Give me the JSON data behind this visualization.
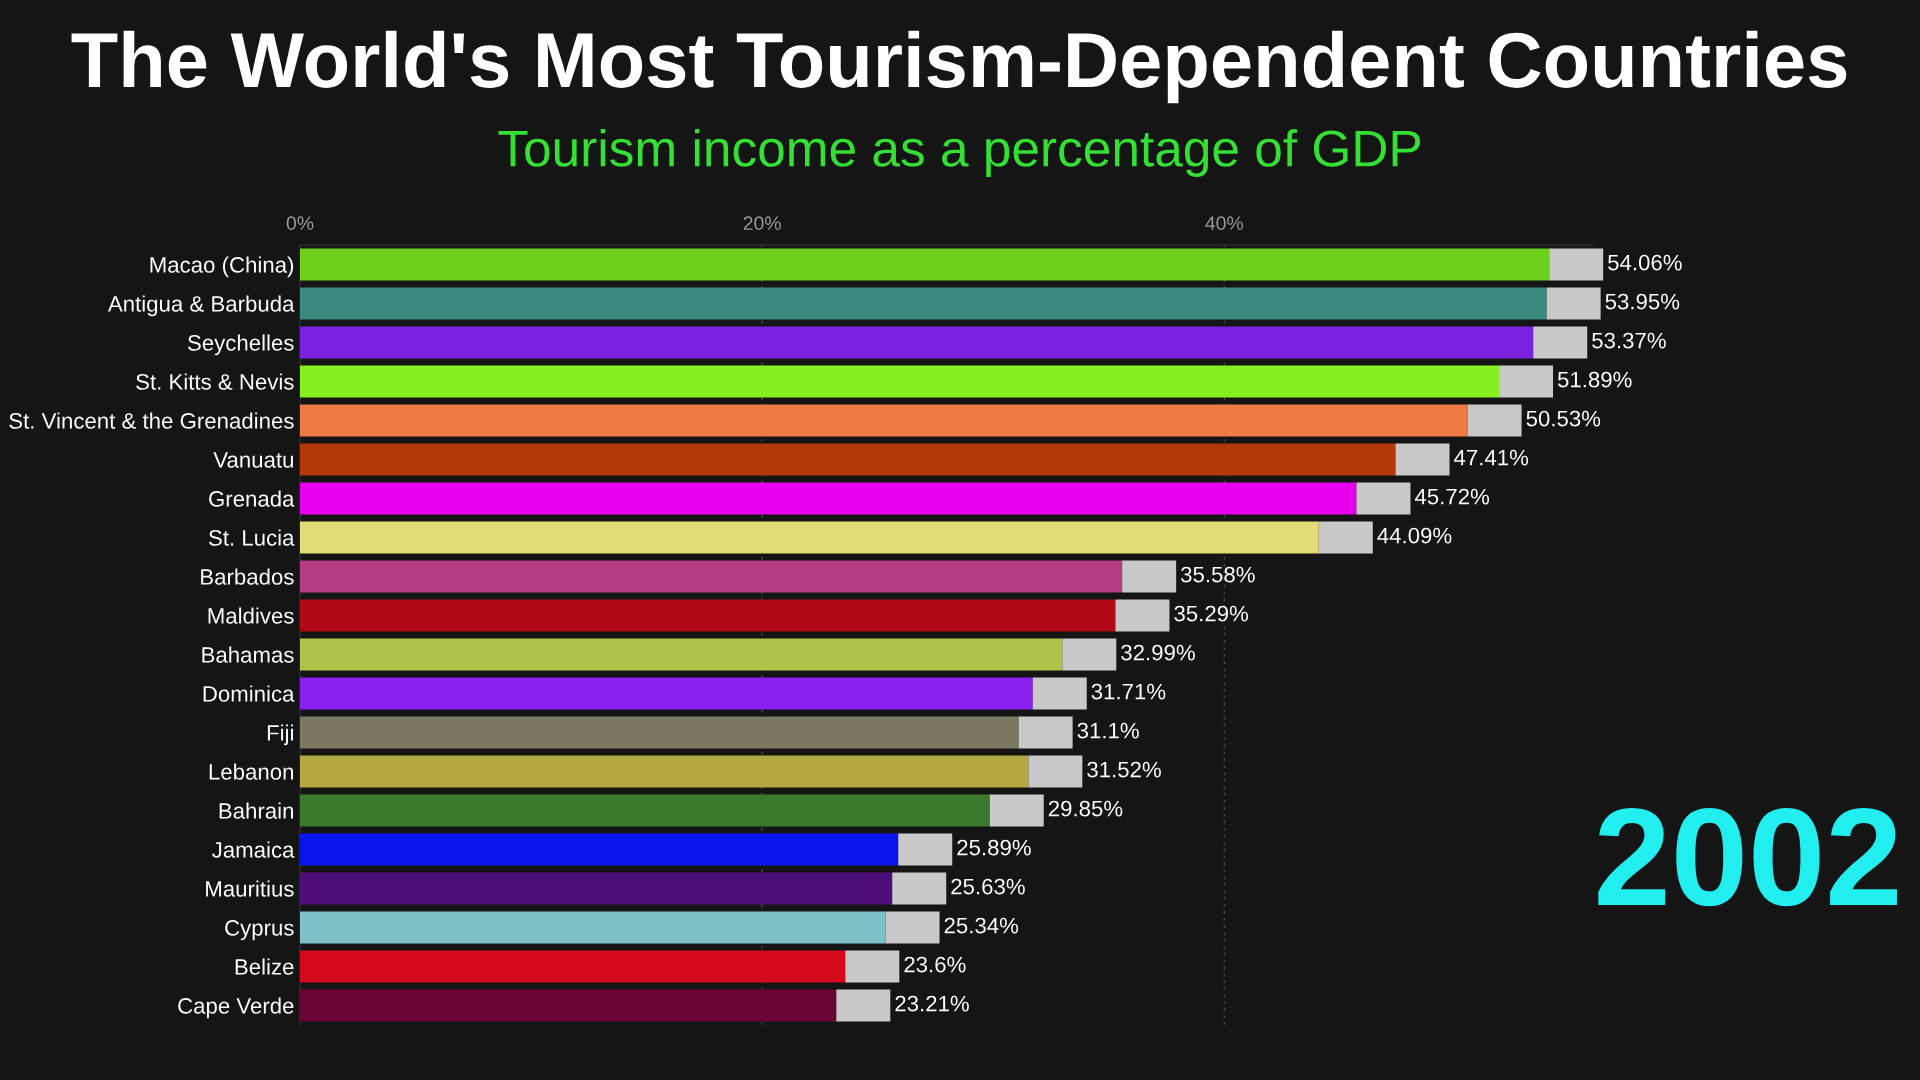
{
  "chart_data": {
    "type": "bar",
    "orientation": "horizontal",
    "title": "The World's Most Tourism-Dependent Countries",
    "subtitle": "Tourism income as a percentage of GDP",
    "categories": [
      "Macao (China)",
      "Antigua & Barbuda",
      "Seychelles",
      "St. Kitts & Nevis",
      "St. Vincent & the Grenadines",
      "Vanuatu",
      "Grenada",
      "St. Lucia",
      "Barbados",
      "Maldives",
      "Bahamas",
      "Dominica",
      "Fiji",
      "Lebanon",
      "Bahrain",
      "Jamaica",
      "Mauritius",
      "Cyprus",
      "Belize",
      "Cape Verde"
    ],
    "values": [
      54.06,
      53.95,
      53.37,
      51.89,
      50.53,
      47.41,
      45.72,
      44.09,
      35.58,
      35.29,
      32.99,
      31.71,
      31.1,
      31.52,
      29.85,
      25.89,
      25.63,
      25.34,
      23.6,
      23.21
    ],
    "colors": [
      "#6ccf1c",
      "#3b8a80",
      "#7a22e0",
      "#86f021",
      "#f07a43",
      "#b33a06",
      "#e600ee",
      "#e4dc78",
      "#b63d83",
      "#b00a16",
      "#adc44a",
      "#8a20f0",
      "#7d7860",
      "#b5a842",
      "#3a7a2a",
      "#0a14f0",
      "#4f0f7a",
      "#7cc2c6",
      "#d4091b",
      "#6a0536"
    ],
    "value_labels": [
      "54.06%",
      "53.95%",
      "53.37%",
      "51.89%",
      "50.53%",
      "47.41%",
      "45.72%",
      "44.09%",
      "35.58%",
      "35.29%",
      "32.99%",
      "31.71%",
      "31.1%",
      "31.52%",
      "29.85%",
      "25.89%",
      "25.63%",
      "25.34%",
      "23.6%",
      "23.21%"
    ],
    "xlim": [
      0,
      56
    ],
    "xticks": [
      {
        "value": 0,
        "label": "0%"
      },
      {
        "value": 20,
        "label": "20%"
      },
      {
        "value": 40,
        "label": "40%"
      }
    ],
    "grid": "x",
    "annotations": [
      "2002"
    ]
  }
}
